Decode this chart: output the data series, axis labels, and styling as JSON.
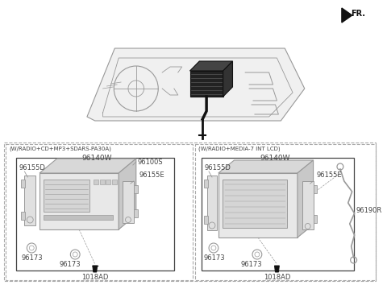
{
  "bg_color": "#ffffff",
  "line_color": "#999999",
  "dark_color": "#444444",
  "black_color": "#111111",
  "dashed_color": "#aaaaaa",
  "title_fr": "FR.",
  "label_w_radio_cd": "(W/RADIO+CD+MP3+SDARS-PA30A)",
  "label_w_radio_media": "(W/RADIO+MEDIA-7 INT LCD)",
  "part_96140W_1": "96140W",
  "part_96140W_2": "96140W",
  "part_96155D_1": "96155D",
  "part_96155D_2": "96155D",
  "part_96100S": "96100S",
  "part_96155E_1": "96155E",
  "part_96155E_2": "96155E",
  "part_96173_1a": "96173",
  "part_96173_1b": "96173",
  "part_96173_2a": "96173",
  "part_96173_2b": "96173",
  "part_1018AD_1": "1018AD",
  "part_1018AD_2": "1018AD",
  "part_96190R": "96190R",
  "fig_width": 4.8,
  "fig_height": 3.54,
  "dpi": 100
}
